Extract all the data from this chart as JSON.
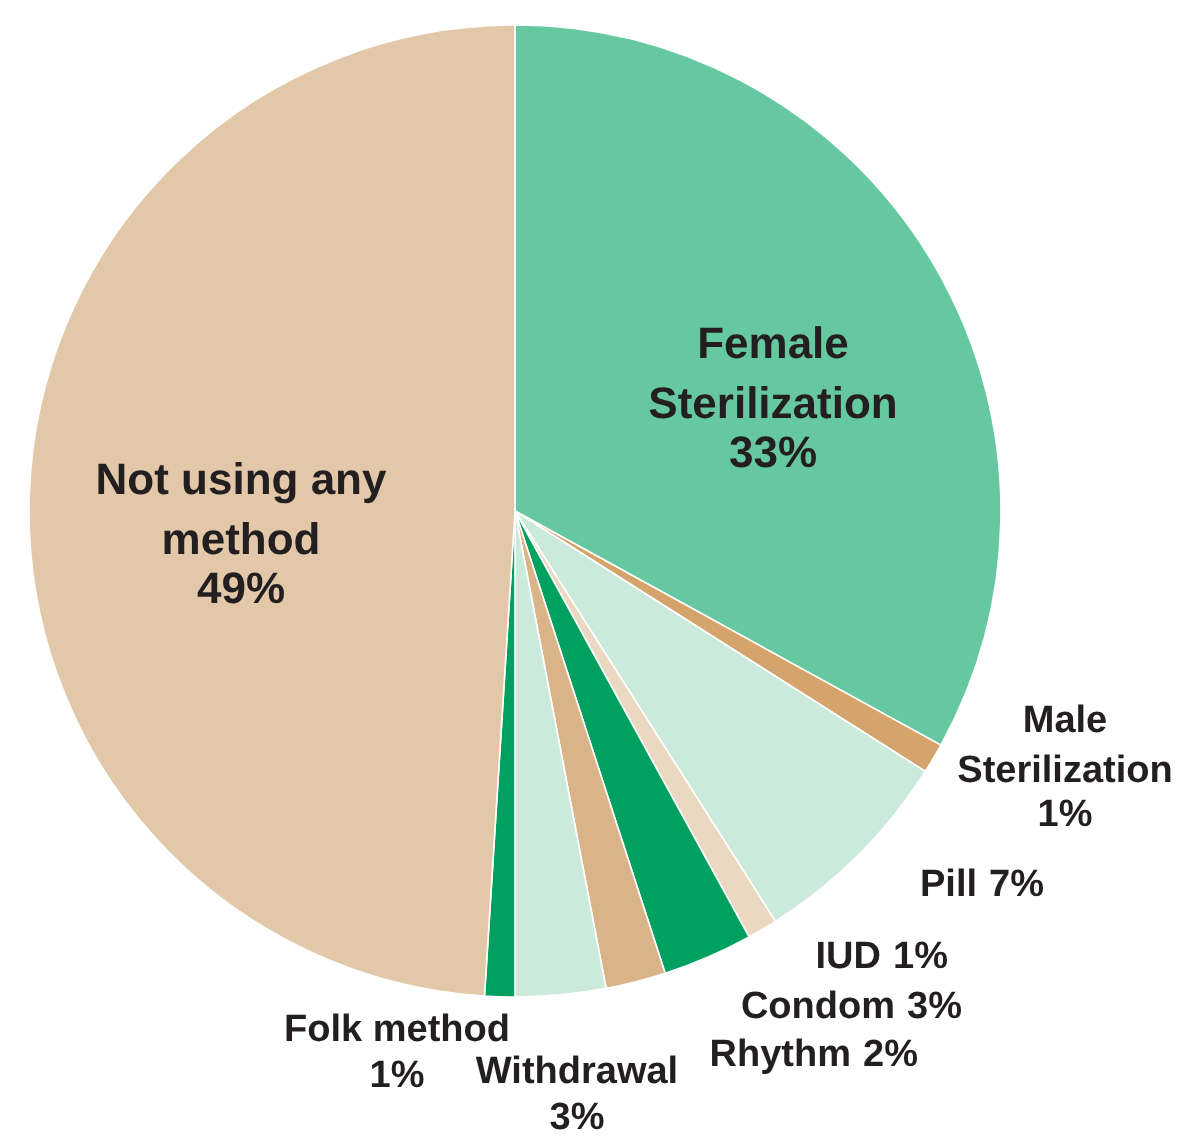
{
  "chart_data": {
    "type": "pie",
    "categories": [
      "Female Sterilization",
      "Male Sterilization",
      "Pill",
      "IUD",
      "Condom",
      "Rhythm",
      "Withdrawal",
      "Folk method",
      "Not using any method"
    ],
    "values": [
      33,
      1,
      7,
      1,
      3,
      2,
      3,
      1,
      49
    ],
    "colors": [
      "#66c8a0",
      "#d4a46c",
      "#cceadc",
      "#ead8c0",
      "#00a160",
      "#d8b488",
      "#cceadc",
      "#00a160",
      "#e2c8a8"
    ],
    "value_labels": [
      "33%",
      "1%",
      "7%",
      "1%",
      "3%",
      "2%",
      "3%",
      "1%",
      "49%"
    ]
  }
}
